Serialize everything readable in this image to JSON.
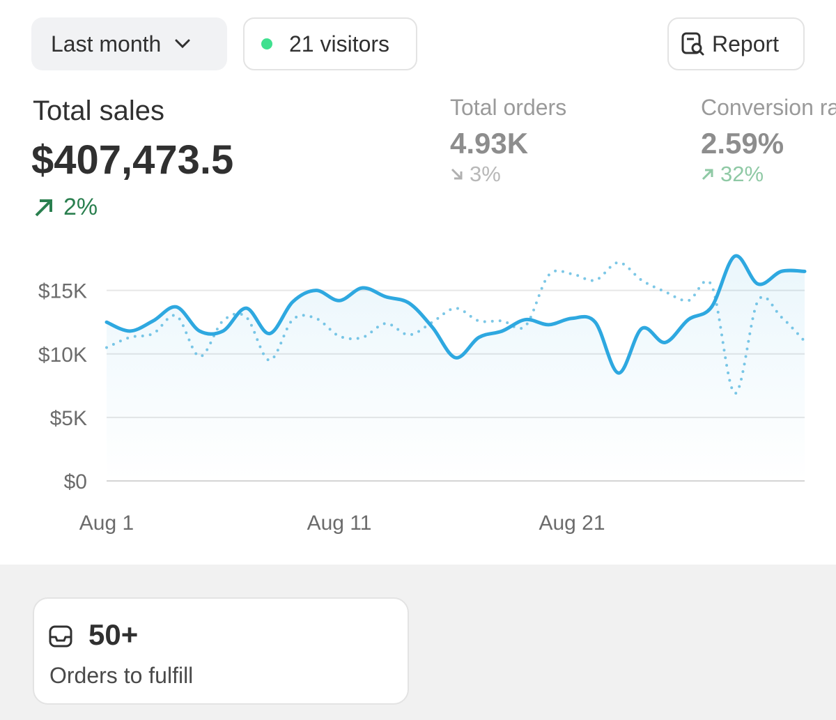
{
  "header": {
    "period": "Last month",
    "visitors": "21 visitors",
    "report": "Report"
  },
  "metrics": [
    {
      "label": "Total sales",
      "value": "$407,473.5",
      "change": "2%"
    },
    {
      "label": "Total orders",
      "value": "4.93K",
      "change": "3%"
    },
    {
      "label": "Conversion rate",
      "value": "2.59%",
      "change": "32%"
    }
  ],
  "chart_data": {
    "type": "line",
    "categories": [
      "Aug 1",
      null,
      null,
      null,
      null,
      null,
      null,
      null,
      null,
      null,
      "Aug 11",
      null,
      null,
      null,
      null,
      null,
      null,
      null,
      null,
      null,
      "Aug 21",
      null,
      null,
      null,
      null,
      null,
      null,
      null,
      null,
      null,
      null
    ],
    "series": [
      {
        "color": "#2ea8e0",
        "style": "solid",
        "area": true,
        "values": [
          12.5,
          11.8,
          12.6,
          13.7,
          11.8,
          11.8,
          13.6,
          11.6,
          14.1,
          15.0,
          14.2,
          15.2,
          14.5,
          14.0,
          12.1,
          9.7,
          11.3,
          11.8,
          12.7,
          12.3,
          12.8,
          12.5,
          8.5,
          12.0,
          10.9,
          12.7,
          13.7,
          17.7,
          15.5,
          16.5,
          16.5
        ]
      },
      {
        "color": "#7cc7e6",
        "style": "dotted",
        "area": false,
        "values": [
          10.5,
          11.3,
          11.6,
          13.0,
          9.8,
          12.6,
          12.9,
          9.5,
          12.7,
          12.8,
          11.4,
          11.3,
          12.4,
          11.5,
          12.5,
          13.6,
          12.6,
          12.6,
          12.2,
          16.2,
          16.3,
          15.8,
          17.2,
          15.8,
          14.9,
          14.2,
          15.4,
          6.9,
          14.2,
          12.9,
          11.0
        ]
      }
    ],
    "ylim": [
      0,
      18
    ],
    "yticks": [
      {
        "value": 0,
        "label": "$0"
      },
      {
        "value": 5,
        "label": "$5K"
      },
      {
        "value": 10,
        "label": "$10K"
      },
      {
        "value": 15,
        "label": "$15K"
      }
    ],
    "grid": true
  },
  "card": {
    "value": "50+",
    "label": "Orders to fulfill"
  }
}
